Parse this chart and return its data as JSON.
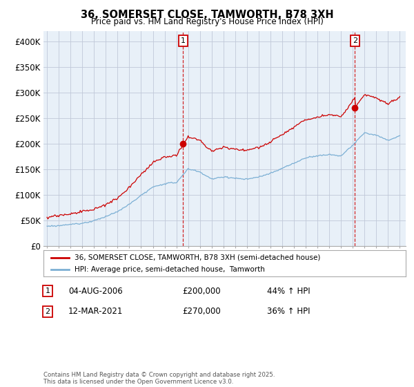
{
  "title": "36, SOMERSET CLOSE, TAMWORTH, B78 3XH",
  "subtitle": "Price paid vs. HM Land Registry's House Price Index (HPI)",
  "ylim": [
    0,
    420000
  ],
  "yticks": [
    0,
    50000,
    100000,
    150000,
    200000,
    250000,
    300000,
    350000,
    400000
  ],
  "ytick_labels": [
    "£0",
    "£50K",
    "£100K",
    "£150K",
    "£200K",
    "£250K",
    "£300K",
    "£350K",
    "£400K"
  ],
  "xlim_start": 1994.7,
  "xlim_end": 2025.5,
  "sale1_date": 2006.58,
  "sale1_price": 200000,
  "sale2_date": 2021.18,
  "sale2_price": 270000,
  "legend_line1": "36, SOMERSET CLOSE, TAMWORTH, B78 3XH (semi-detached house)",
  "legend_line2": "HPI: Average price, semi-detached house,  Tamworth",
  "footer": "Contains HM Land Registry data © Crown copyright and database right 2025.\nThis data is licensed under the Open Government Licence v3.0.",
  "annotation1_date": "04-AUG-2006",
  "annotation1_price": "£200,000",
  "annotation1_hpi": "44% ↑ HPI",
  "annotation2_date": "12-MAR-2021",
  "annotation2_price": "£270,000",
  "annotation2_hpi": "36% ↑ HPI",
  "color_red": "#cc0000",
  "color_blue": "#7bafd4",
  "color_bg_plot": "#e8f0f8",
  "color_dashed": "#cc0000",
  "background": "#ffffff",
  "grid_color": "#c0c8d8"
}
